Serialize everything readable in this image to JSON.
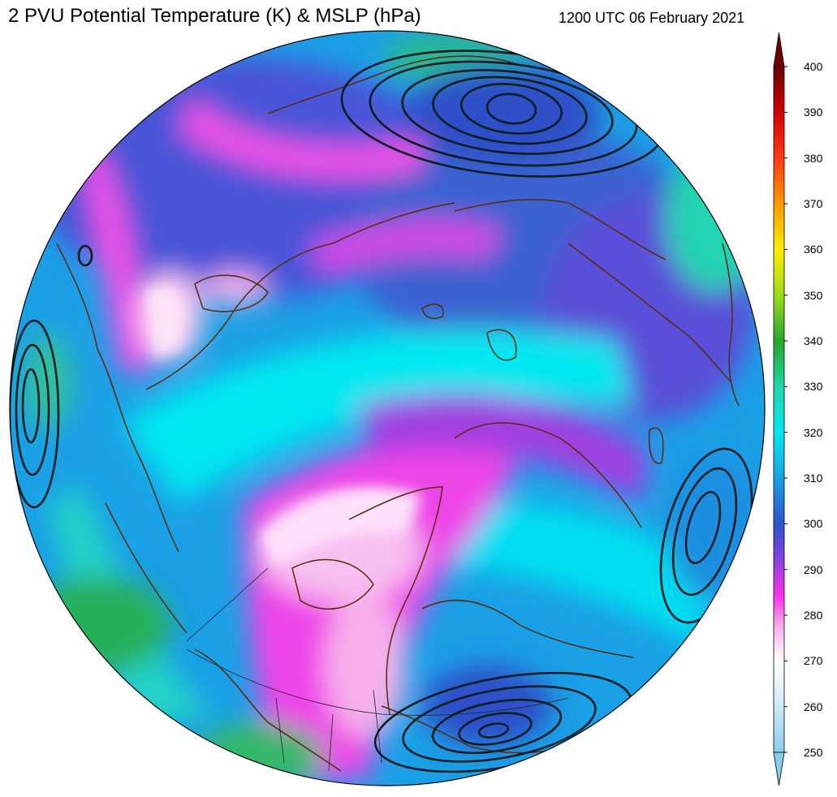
{
  "title": "2 PVU Potential Temperature (K) & MSLP (hPa)",
  "timestamp": "1200 UTC 06 February 2021",
  "colorbar": {
    "min": 250,
    "max": 400,
    "ticks": [
      "400",
      "390",
      "380",
      "370",
      "360",
      "350",
      "340",
      "330",
      "320",
      "310",
      "300",
      "290",
      "280",
      "270",
      "260",
      "250"
    ],
    "extend": "both",
    "stops": [
      {
        "value": 250,
        "color": "#87cfee"
      },
      {
        "value": 262,
        "color": "#d7f0fa"
      },
      {
        "value": 270,
        "color": "#ffffff"
      },
      {
        "value": 278,
        "color": "#f7a8e8"
      },
      {
        "value": 284,
        "color": "#ff33ee"
      },
      {
        "value": 292,
        "color": "#8b3fe0"
      },
      {
        "value": 300,
        "color": "#2a55cc"
      },
      {
        "value": 310,
        "color": "#1aa0e6"
      },
      {
        "value": 320,
        "color": "#00e8f0"
      },
      {
        "value": 330,
        "color": "#1fd6a8"
      },
      {
        "value": 340,
        "color": "#25a82a"
      },
      {
        "value": 350,
        "color": "#9bdc1c"
      },
      {
        "value": 360,
        "color": "#ffee00"
      },
      {
        "value": 370,
        "color": "#ff9800"
      },
      {
        "value": 380,
        "color": "#ff3a10"
      },
      {
        "value": 390,
        "color": "#d00000"
      },
      {
        "value": 400,
        "color": "#6e0000"
      }
    ]
  },
  "colors": {
    "coastline": "#5a2a0a",
    "isobar": "#0a1e22",
    "disk_outline": "#000000"
  }
}
